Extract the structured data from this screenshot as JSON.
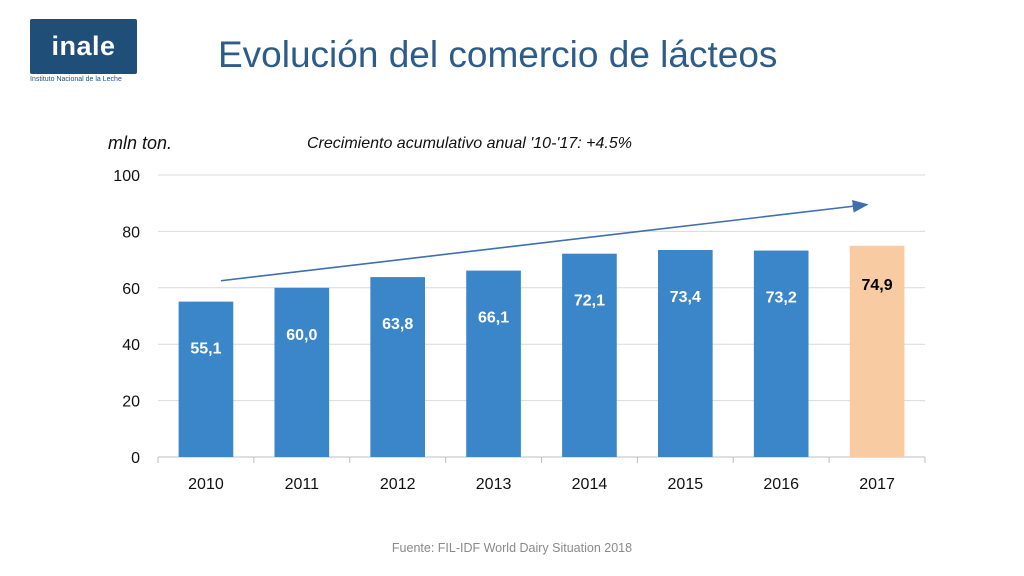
{
  "logo": {
    "text": "inale",
    "subtitle": "Instituto Nacional de la Leche"
  },
  "title": "Evolución del comercio de lácteos",
  "source": "Fuente: FIL-IDF World Dairy Situation 2018",
  "colors": {
    "bar": "#3a86c8",
    "highlight": "#f8cba3",
    "arrow": "#3f6fb0",
    "grid": "#d9d9d9",
    "title": "#2e5c8a"
  },
  "chart_data": {
    "type": "bar",
    "ylabel": "mln ton.",
    "annotation": "Crecimiento acumulativo anual '10-'17: +4.5%",
    "categories": [
      "2010",
      "2011",
      "2012",
      "2013",
      "2014",
      "2015",
      "2016",
      "2017"
    ],
    "values": [
      55.1,
      60.0,
      63.8,
      66.1,
      72.1,
      73.4,
      73.2,
      74.9
    ],
    "data_labels": [
      "55,1",
      "60,0",
      "63,8",
      "66,1",
      "72,1",
      "73,4",
      "73,2",
      "74,9"
    ],
    "highlight_index": 7,
    "ylim": [
      0,
      100
    ],
    "yticks": [
      "0",
      "20",
      "40",
      "60",
      "80",
      "100"
    ],
    "grid": true,
    "legend": "none"
  }
}
